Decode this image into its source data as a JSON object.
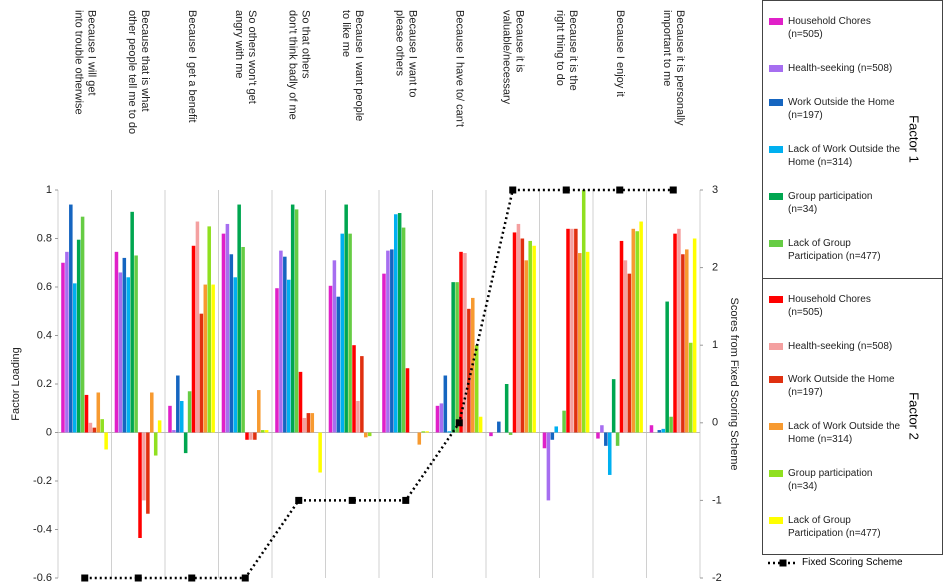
{
  "chart_data": {
    "type": "bar",
    "y_label": "Factor Loading",
    "y2_label": "Scores from Fixed Scoring Scheme",
    "categories": [
      [
        "Because I will get",
        "into trouble otherwise"
      ],
      [
        "Because that is what",
        "other people tell me to do"
      ],
      [
        "Because I get a benefit"
      ],
      [
        "So others won't get",
        "angry with me"
      ],
      [
        "So that others",
        "don't think badly of me"
      ],
      [
        "Because I want people",
        "to like me"
      ],
      [
        "Because I want to",
        "please others"
      ],
      [
        "Because I have to/ can't"
      ],
      [
        "Because it is",
        "valuable/necessary"
      ],
      [
        "Because it is the",
        "right thing to do"
      ],
      [
        "Because I enjoy it"
      ],
      [
        "Because it is personally",
        "important to me"
      ]
    ],
    "ylim": [
      -0.6,
      1
    ],
    "yticks": [
      -0.6,
      -0.4,
      -0.2,
      0,
      0.2,
      0.4,
      0.6,
      0.8,
      1
    ],
    "y2lim": [
      -2,
      3
    ],
    "y2ticks": [
      -2,
      -1,
      0,
      1,
      2,
      3
    ],
    "series": [
      {
        "name": "Household Chores (n=505)",
        "factor": "Factor 1",
        "color": "#e020c8",
        "values": [
          0.7,
          0.745,
          0.11,
          0.82,
          0.595,
          0.605,
          0.655,
          0.11,
          -0.015,
          -0.065,
          -0.025,
          0.03
        ]
      },
      {
        "name": "Health-seeking (n=508)",
        "factor": "Factor 1",
        "color": "#a66ef0",
        "values": [
          0.745,
          0.66,
          0.01,
          0.86,
          0.75,
          0.71,
          0.75,
          0.12,
          0.0,
          -0.28,
          0.03,
          0.0
        ]
      },
      {
        "name": "Work Outside the Home (n=197)",
        "factor": "Factor 1",
        "color": "#1565c0",
        "values": [
          0.94,
          0.72,
          0.235,
          0.735,
          0.725,
          0.56,
          0.755,
          0.235,
          0.045,
          -0.03,
          -0.055,
          0.01
        ]
      },
      {
        "name": "Lack of Work Outside the Home (n=314)",
        "factor": "Factor 1",
        "color": "#00b0f0",
        "values": [
          0.615,
          0.64,
          0.13,
          0.64,
          0.63,
          0.82,
          0.9,
          0.005,
          0.0,
          0.025,
          -0.175,
          0.015
        ]
      },
      {
        "name": "Group participation (n=34)",
        "factor": "Factor 1",
        "color": "#00a650",
        "values": [
          0.795,
          0.91,
          -0.085,
          0.94,
          0.94,
          0.94,
          0.905,
          0.62,
          0.2,
          0.0,
          0.22,
          0.54
        ]
      },
      {
        "name": "Lack of Group Participation (n=477)",
        "factor": "Factor 1",
        "color": "#66cc44",
        "values": [
          0.89,
          0.73,
          0.17,
          0.765,
          0.92,
          0.82,
          0.845,
          0.62,
          -0.01,
          0.09,
          -0.055,
          0.065
        ]
      },
      {
        "name": "Household Chores (n=505)",
        "factor": "Factor 2",
        "color": "#ff0000",
        "values": [
          0.155,
          -0.435,
          0.77,
          -0.03,
          0.25,
          0.36,
          0.265,
          0.745,
          0.825,
          0.84,
          0.79,
          0.82
        ]
      },
      {
        "name": "Health-seeking (n=508)",
        "factor": "Factor 2",
        "color": "#f4a0a0",
        "values": [
          0.04,
          -0.28,
          0.87,
          -0.03,
          0.06,
          0.13,
          0.0,
          0.74,
          0.86,
          0.84,
          0.71,
          0.84
        ]
      },
      {
        "name": "Work Outside the Home (n=197)",
        "factor": "Factor 2",
        "color": "#e03010",
        "values": [
          0.02,
          -0.335,
          0.49,
          -0.03,
          0.08,
          0.315,
          0.0,
          0.51,
          0.8,
          0.84,
          0.655,
          0.735
        ]
      },
      {
        "name": "Lack of Work Outside the Home (n=314)",
        "factor": "Factor 2",
        "color": "#f79a30",
        "values": [
          0.165,
          0.165,
          0.61,
          0.175,
          0.08,
          -0.02,
          -0.05,
          0.555,
          0.71,
          0.74,
          0.84,
          0.755
        ]
      },
      {
        "name": "Group participation (n=34)",
        "factor": "Factor 2",
        "color": "#90e020",
        "values": [
          0.055,
          -0.095,
          0.85,
          0.01,
          0.0,
          -0.015,
          0.005,
          0.36,
          0.79,
          1.0,
          0.83,
          0.37
        ]
      },
      {
        "name": "Lack of Group Participation (n=477)",
        "factor": "Factor 2",
        "color": "#ffff00",
        "values": [
          -0.07,
          0.05,
          0.61,
          0.01,
          -0.165,
          0.0,
          0.005,
          0.065,
          0.77,
          0.745,
          0.87,
          0.8
        ]
      },
      {
        "name": "Fixed Scoring Scheme",
        "type": "line",
        "axis": "y2",
        "color": "#000000",
        "values": [
          -2,
          -2,
          -2,
          -2,
          -1,
          -1,
          -1,
          0,
          3,
          3,
          3,
          3
        ]
      }
    ]
  }
}
